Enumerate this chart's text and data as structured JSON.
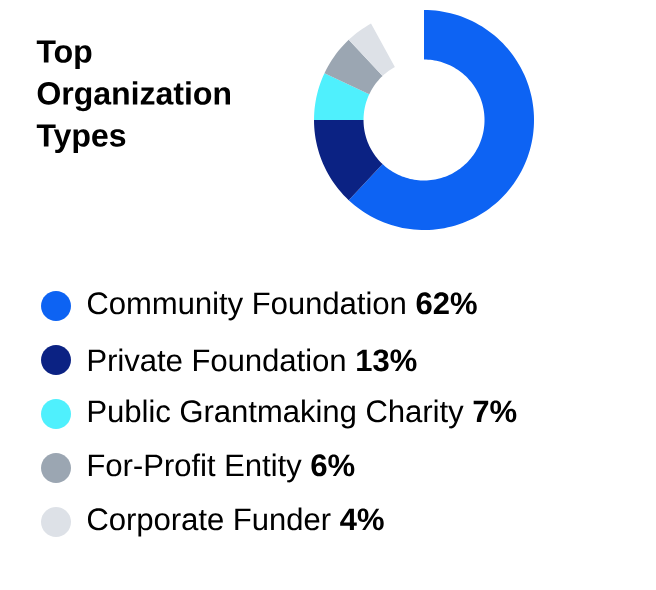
{
  "chart_data": {
    "type": "donut",
    "title": "Top Organization Types",
    "categories": [
      "Community Foundation",
      "Private Foundation",
      "Public Grantmaking Charity",
      "For-Profit Entity",
      "Corporate Funder"
    ],
    "values": [
      62,
      13,
      7,
      6,
      4
    ],
    "value_labels": [
      "62%",
      "13%",
      "7%",
      "6%",
      "4%"
    ],
    "colors": [
      "#0d63f3",
      "#0b2283",
      "#4ff0fd",
      "#9ba6b2",
      "#dde1e7"
    ],
    "legend": "bottom"
  }
}
